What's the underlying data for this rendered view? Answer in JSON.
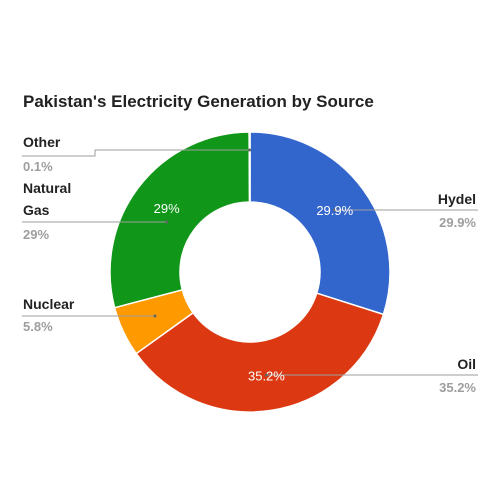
{
  "chart_data": {
    "type": "pie",
    "donut": true,
    "title": "Pakistan's Electricity Generation by Source",
    "slices": [
      {
        "label": "Hydel",
        "value": 29.9,
        "display": "29.9%",
        "inner_label": "29.9%",
        "color": "#3366cc"
      },
      {
        "label": "Oil",
        "value": 35.2,
        "display": "35.2%",
        "inner_label": "35.2%",
        "color": "#dc3912"
      },
      {
        "label": "Nuclear",
        "value": 5.8,
        "display": "5.8%",
        "inner_label": "",
        "color": "#ff9900"
      },
      {
        "label": "Natural Gas",
        "label_lines": [
          "Natural",
          "Gas"
        ],
        "value": 29,
        "display": "29%",
        "inner_label": "29%",
        "color": "#109618"
      },
      {
        "label": "Other",
        "value": 0.1,
        "display": "0.1%",
        "inner_label": "",
        "color": "#990099"
      }
    ],
    "legend": "labeled"
  }
}
